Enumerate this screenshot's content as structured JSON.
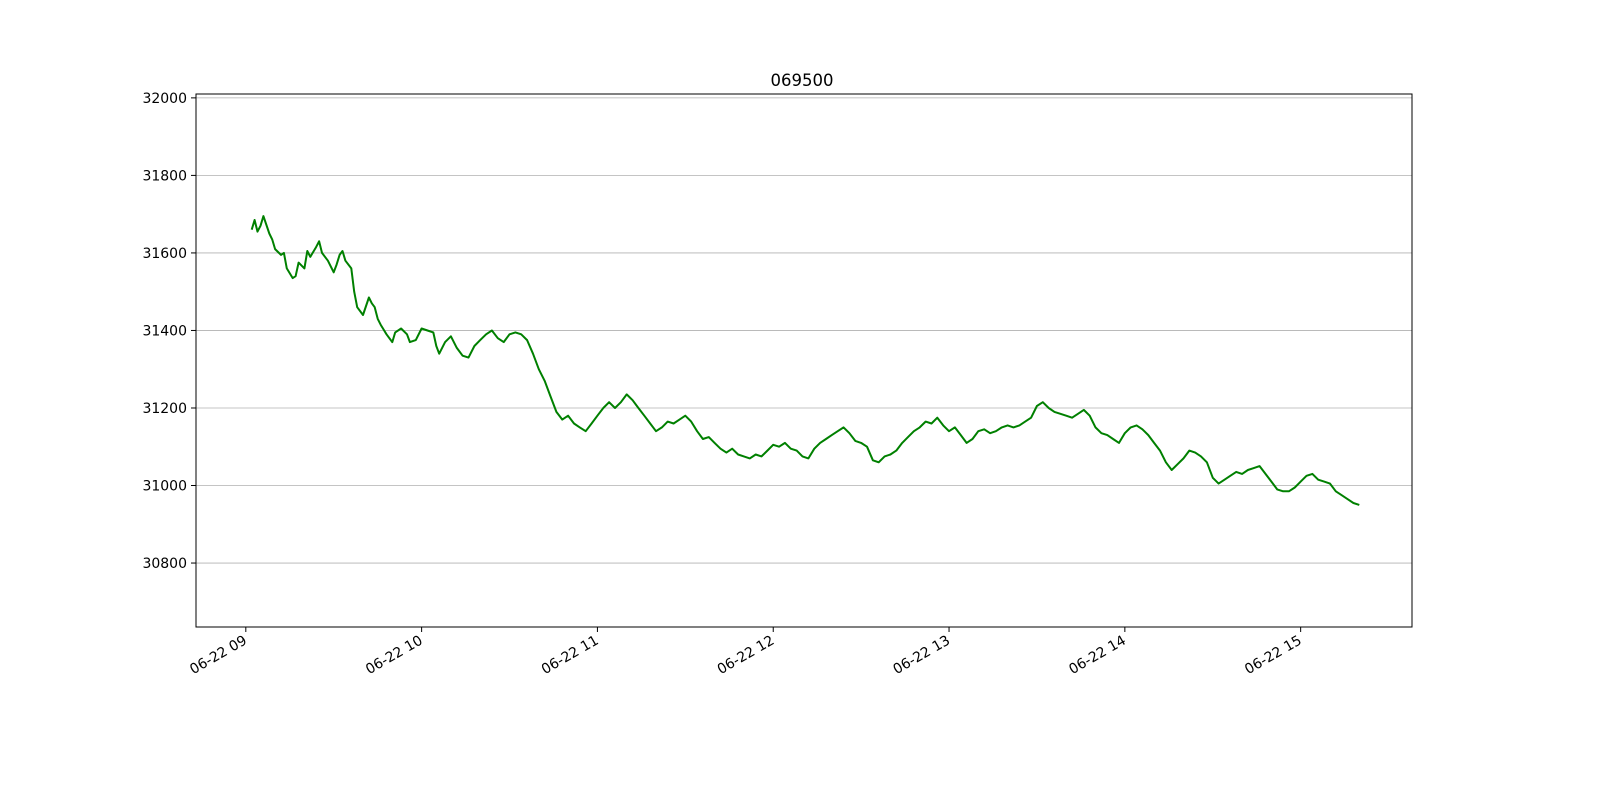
{
  "chart_data": {
    "type": "line",
    "title": "069500",
    "xlabel": "",
    "ylabel": "",
    "x_range": [
      "06-22 08:43",
      "06-22 15:38"
    ],
    "ylim": [
      30635,
      32010
    ],
    "grid": {
      "x": false,
      "y": true
    },
    "line_color": "#008000",
    "x_ticks": [
      {
        "time": "09:00",
        "label": "06-22 09"
      },
      {
        "time": "10:00",
        "label": "06-22 10"
      },
      {
        "time": "11:00",
        "label": "06-22 11"
      },
      {
        "time": "12:00",
        "label": "06-22 12"
      },
      {
        "time": "13:00",
        "label": "06-22 13"
      },
      {
        "time": "14:00",
        "label": "06-22 14"
      },
      {
        "time": "15:00",
        "label": "06-22 15"
      }
    ],
    "y_ticks": [
      30800,
      31000,
      31200,
      31400,
      31600,
      31800,
      32000
    ],
    "series": [
      {
        "x": [
          "09:02",
          "09:03",
          "09:04",
          "09:05",
          "09:06",
          "09:08",
          "09:09",
          "09:10",
          "09:12",
          "09:13",
          "09:14",
          "09:16",
          "09:17",
          "09:18",
          "09:20",
          "09:21",
          "09:22",
          "09:24",
          "09:25",
          "09:26",
          "09:28",
          "09:30",
          "09:31",
          "09:32",
          "09:33",
          "09:34",
          "09:36",
          "09:37",
          "09:38",
          "09:40",
          "09:42",
          "09:43",
          "09:44",
          "09:45",
          "09:46",
          "09:48",
          "09:50",
          "09:51",
          "09:53",
          "09:55",
          "09:56",
          "09:58",
          "10:00",
          "10:02",
          "10:04",
          "10:05",
          "10:06",
          "10:08",
          "10:10",
          "10:12",
          "10:14",
          "10:16",
          "10:18",
          "10:20",
          "10:22",
          "10:24",
          "10:26",
          "10:28",
          "10:30",
          "10:32",
          "10:34",
          "10:36",
          "10:38",
          "10:40",
          "10:42",
          "10:44",
          "10:46",
          "10:48",
          "10:50",
          "10:52",
          "10:54",
          "10:56",
          "10:58",
          "11:00",
          "11:02",
          "11:04",
          "11:06",
          "11:08",
          "11:10",
          "11:12",
          "11:14",
          "11:16",
          "11:18",
          "11:20",
          "11:22",
          "11:24",
          "11:26",
          "11:28",
          "11:30",
          "11:32",
          "11:34",
          "11:36",
          "11:38",
          "11:40",
          "11:42",
          "11:44",
          "11:46",
          "11:48",
          "11:50",
          "11:52",
          "11:54",
          "11:56",
          "11:58",
          "12:00",
          "12:02",
          "12:04",
          "12:06",
          "12:08",
          "12:10",
          "12:12",
          "12:14",
          "12:16",
          "12:18",
          "12:20",
          "12:22",
          "12:24",
          "12:26",
          "12:28",
          "12:30",
          "12:32",
          "12:34",
          "12:36",
          "12:38",
          "12:40",
          "12:42",
          "12:44",
          "12:46",
          "12:48",
          "12:50",
          "12:52",
          "12:54",
          "12:56",
          "12:58",
          "13:00",
          "13:02",
          "13:04",
          "13:06",
          "13:08",
          "13:10",
          "13:12",
          "13:14",
          "13:16",
          "13:18",
          "13:20",
          "13:22",
          "13:24",
          "13:26",
          "13:28",
          "13:30",
          "13:32",
          "13:34",
          "13:36",
          "13:38",
          "13:40",
          "13:42",
          "13:44",
          "13:46",
          "13:48",
          "13:50",
          "13:52",
          "13:54",
          "13:56",
          "13:58",
          "14:00",
          "14:02",
          "14:04",
          "14:06",
          "14:08",
          "14:10",
          "14:12",
          "14:14",
          "14:16",
          "14:18",
          "14:20",
          "14:22",
          "14:24",
          "14:26",
          "14:28",
          "14:30",
          "14:32",
          "14:34",
          "14:36",
          "14:38",
          "14:40",
          "14:42",
          "14:44",
          "14:46",
          "14:48",
          "14:50",
          "14:52",
          "14:54",
          "14:56",
          "14:58",
          "15:00",
          "15:02",
          "15:04",
          "15:06",
          "15:08",
          "15:10",
          "15:12",
          "15:14",
          "15:16",
          "15:18",
          "15:20"
        ],
        "values": [
          31660,
          31685,
          31655,
          31670,
          31695,
          31650,
          31635,
          31610,
          31595,
          31600,
          31560,
          31535,
          31540,
          31575,
          31560,
          31605,
          31590,
          31615,
          31630,
          31600,
          31580,
          31550,
          31570,
          31595,
          31605,
          31580,
          31560,
          31500,
          31460,
          31440,
          31485,
          31470,
          31460,
          31430,
          31415,
          31390,
          31370,
          31395,
          31405,
          31390,
          31370,
          31375,
          31405,
          31400,
          31395,
          31360,
          31340,
          31370,
          31385,
          31355,
          31335,
          31330,
          31360,
          31375,
          31390,
          31400,
          31380,
          31370,
          31390,
          31395,
          31390,
          31375,
          31340,
          31300,
          31270,
          31230,
          31190,
          31170,
          31180,
          31160,
          31150,
          31140,
          31160,
          31180,
          31200,
          31215,
          31200,
          31215,
          31235,
          31220,
          31200,
          31180,
          31160,
          31140,
          31150,
          31165,
          31160,
          31170,
          31180,
          31165,
          31140,
          31120,
          31125,
          31110,
          31095,
          31085,
          31095,
          31080,
          31075,
          31070,
          31080,
          31075,
          31090,
          31105,
          31100,
          31110,
          31095,
          31090,
          31075,
          31070,
          31095,
          31110,
          31120,
          31130,
          31140,
          31150,
          31135,
          31115,
          31110,
          31100,
          31065,
          31060,
          31075,
          31080,
          31090,
          31110,
          31125,
          31140,
          31150,
          31165,
          31160,
          31175,
          31155,
          31140,
          31150,
          31130,
          31110,
          31120,
          31140,
          31145,
          31135,
          31140,
          31150,
          31155,
          31150,
          31155,
          31165,
          31175,
          31205,
          31215,
          31200,
          31190,
          31185,
          31180,
          31175,
          31185,
          31195,
          31180,
          31150,
          31135,
          31130,
          31120,
          31110,
          31135,
          31150,
          31155,
          31145,
          31130,
          31110,
          31090,
          31060,
          31040,
          31055,
          31070,
          31090,
          31085,
          31075,
          31060,
          31020,
          31005,
          31015,
          31025,
          31035,
          31030,
          31040,
          31045,
          31050,
          31030,
          31010,
          30990,
          30985,
          30985,
          30995,
          31010,
          31025,
          31030,
          31015,
          31010,
          31005,
          30985,
          30975,
          30965,
          30955,
          30950
        ]
      }
    ]
  }
}
